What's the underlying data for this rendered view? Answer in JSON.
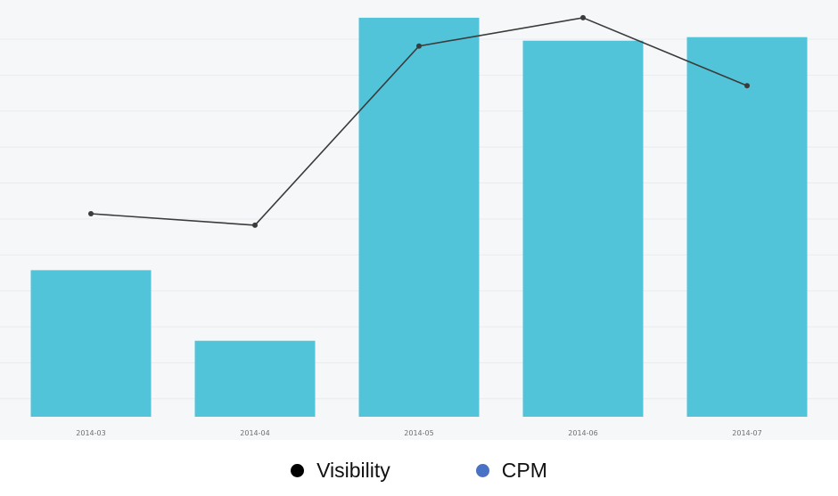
{
  "chart_data": {
    "type": "bar",
    "categories": [
      "2014-03",
      "2014-04",
      "2014-05",
      "2014-06",
      "2014-07"
    ],
    "series": [
      {
        "name": "CPM",
        "kind": "bar",
        "values": [
          1.66,
          0.86,
          4.52,
          4.26,
          4.3
        ],
        "color": "#52c4d9"
      },
      {
        "name": "Visibility",
        "kind": "line",
        "values": [
          2.3,
          2.17,
          4.2,
          4.52,
          3.75
        ],
        "color": "#3b3b3b"
      }
    ],
    "ylim": [
      0,
      4.6
    ],
    "grid": true,
    "legend_position": "bottom"
  },
  "legend": [
    {
      "label": "Visibility",
      "color": "#000000"
    },
    {
      "label": "CPM",
      "color": "#4a72c4"
    }
  ],
  "colors": {
    "plot_background": "#f6f7f9",
    "gridline": "#e9ebee",
    "tick_label": "#6f6f6f"
  }
}
